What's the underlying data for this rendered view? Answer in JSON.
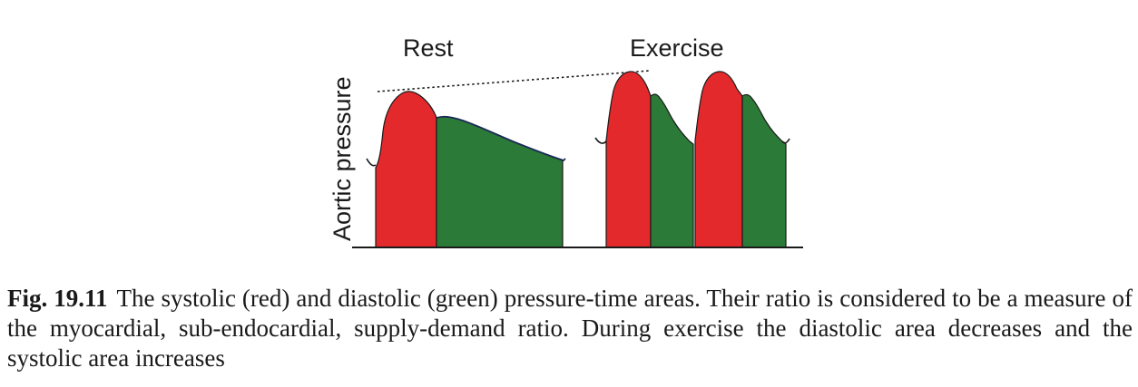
{
  "figure": {
    "labels": {
      "rest": "Rest",
      "exercise": "Exercise",
      "ylabel": "Aortic pressure"
    },
    "colors": {
      "systolic": "#e3292b",
      "diastolic": "#2b7a37",
      "outline": "#1a1a1a"
    }
  },
  "caption": {
    "number": "Fig. 19.11",
    "text": "The systolic (red) and diastolic (green) pressure-time areas. Their ratio is considered to be a measure of the myocardial, sub-endocardial, supply-demand ratio. During exercise the diastolic area decreases and the systolic area increases"
  }
}
